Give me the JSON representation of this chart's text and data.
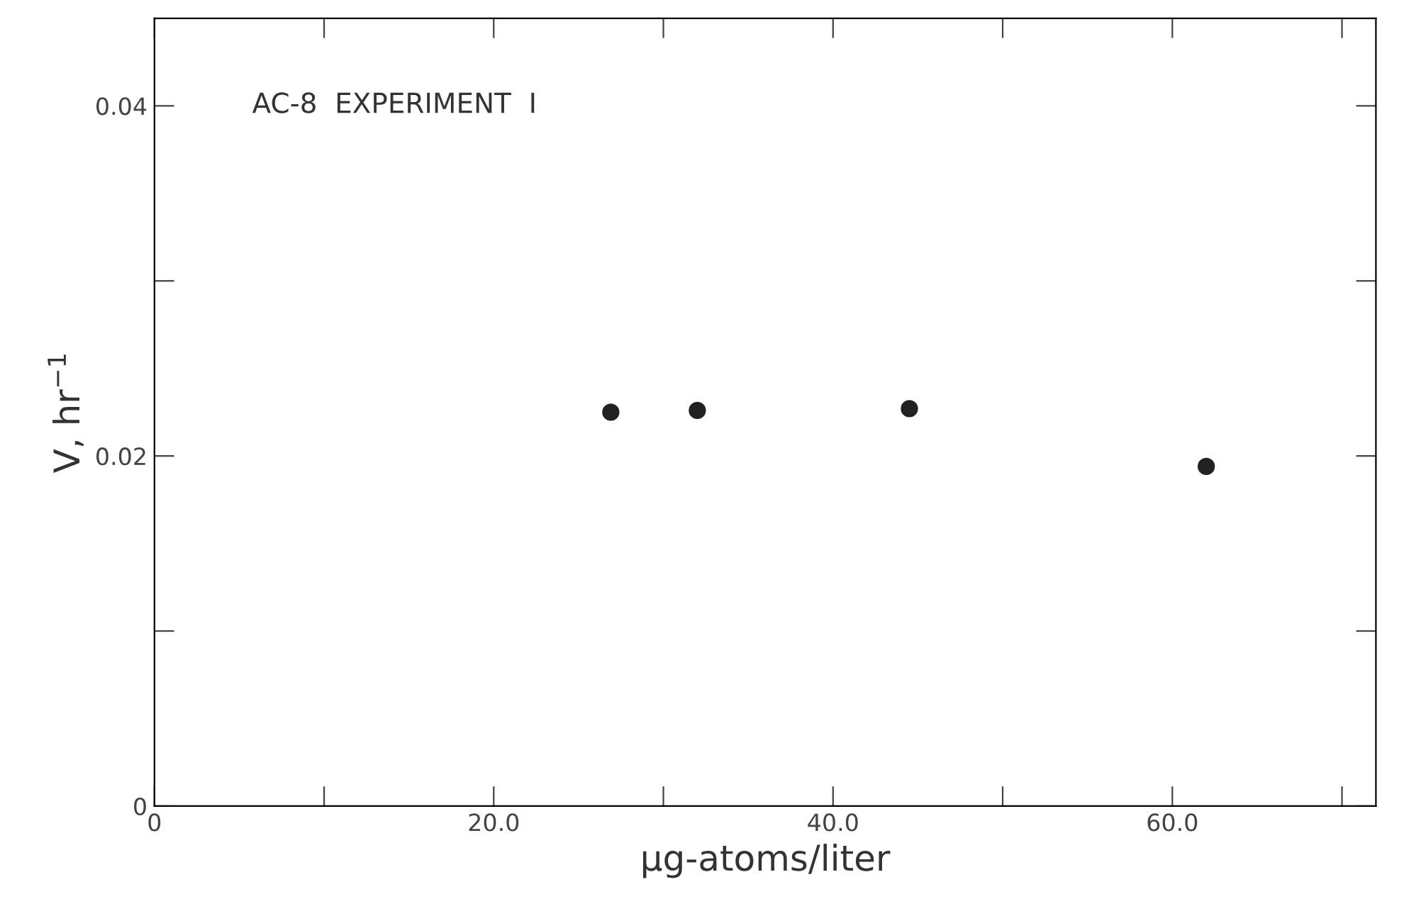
{
  "chart_data": {
    "type": "scatter",
    "xlabel": "μg-atoms/liter",
    "ylabel": "V, hr$^{−1}$",
    "annotations": [
      "AC-8  EXPERIMENT  I"
    ],
    "x": [
      26.9,
      32.0,
      44.5,
      62.0
    ],
    "values": [
      0.0225,
      0.0226,
      0.0227,
      0.0194
    ],
    "color": "#222222",
    "marker": "circle",
    "grid": false,
    "xlim": [
      0,
      72
    ],
    "xticks": [
      0,
      {
        "value": 10,
        "label": null
      },
      {
        "value": 20,
        "label": "20.0"
      },
      {
        "value": 30,
        "label": null
      },
      {
        "value": 40,
        "label": "40.0"
      },
      {
        "value": 50,
        "label": null
      },
      {
        "value": 60,
        "label": "60.0"
      },
      {
        "value": 70,
        "label": null
      }
    ],
    "ylim": [
      0,
      0.045
    ],
    "yticks": [
      0,
      {
        "value": 0.01,
        "label": null
      },
      0.02,
      {
        "value": 0.03,
        "label": null
      },
      0.04
    ]
  }
}
